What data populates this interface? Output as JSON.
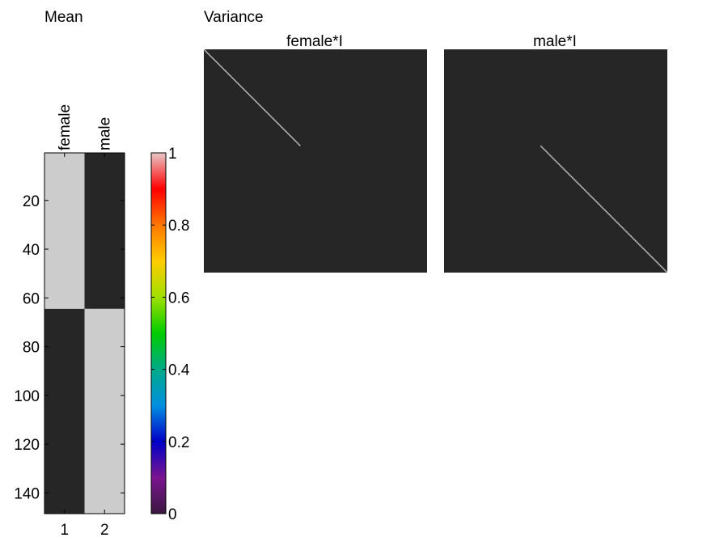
{
  "figure": {
    "mean_title": "Mean",
    "variance_title": "Variance"
  },
  "colors": {
    "background": "#ffffff",
    "dark": "#262626",
    "light": "#cccccc",
    "axis": "#000000",
    "diagonal": "#dcdcdc"
  },
  "chart_data": [
    {
      "type": "heatmap",
      "name": "mean-design-matrix",
      "title": "Mean",
      "column_labels": [
        "female",
        "male"
      ],
      "x_ticks": [
        1,
        2
      ],
      "y_ticks": [
        20,
        40,
        60,
        80,
        100,
        120,
        140
      ],
      "rows": 148,
      "columns": 2,
      "blocks": [
        {
          "rows": [
            1,
            64
          ],
          "values": [
            1,
            0
          ]
        },
        {
          "rows": [
            65,
            148
          ],
          "values": [
            0,
            1
          ]
        }
      ],
      "ylim": [
        0.5,
        148.5
      ],
      "xlim": [
        0.5,
        2.5
      ]
    },
    {
      "type": "heatmap",
      "name": "colorbar",
      "ticks": [
        "0",
        "0.2",
        "0.4",
        "0.6",
        "0.8",
        "1"
      ],
      "range": [
        0,
        1
      ],
      "colorscale": [
        "#3b1740",
        "#7a1490",
        "#0000c8",
        "#0090e0",
        "#00aa88",
        "#00cc00",
        "#a0e000",
        "#ffcc00",
        "#ff7700",
        "#ff0000",
        "#e8c8c8"
      ]
    },
    {
      "type": "heatmap",
      "name": "variance-female",
      "title": "female*I",
      "size": 148,
      "diagonal_rows": [
        1,
        64
      ],
      "value": 1
    },
    {
      "type": "heatmap",
      "name": "variance-male",
      "title": "male*I",
      "size": 148,
      "diagonal_rows": [
        65,
        148
      ],
      "value": 1
    }
  ]
}
